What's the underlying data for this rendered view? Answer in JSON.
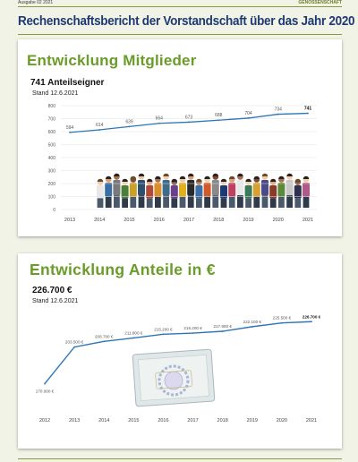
{
  "header": {
    "issue": "Ausgabe 02 2021",
    "brand": "GENOSSENSCHAFT",
    "title": "Rechenschaftsbericht der Vorstandschaft über das Jahr 2020"
  },
  "colors": {
    "line": "#2e75b6",
    "heading": "#6a9c28",
    "title": "#1f3a72"
  },
  "chart_data": [
    {
      "type": "line",
      "title": "Entwicklung Mitglieder",
      "headline_value": "741 Anteilseigner",
      "date_note": "Stand 12.6.2021",
      "x": [
        "2013",
        "2014",
        "2015",
        "2016",
        "2017",
        "2018",
        "2019",
        "2020",
        "2021"
      ],
      "series": [
        {
          "values": [
            594,
            614,
            639,
            664,
            673,
            688,
            704,
            734,
            741
          ],
          "labels": [
            "594",
            "614",
            "639",
            "664",
            "673",
            "688",
            "704",
            "734",
            "741"
          ]
        }
      ],
      "ylim": [
        0,
        800
      ],
      "yticks": [
        "0",
        "100",
        "200",
        "300",
        "400",
        "500",
        "600",
        "700",
        "800"
      ],
      "grid": true,
      "illustration": "people-illustration"
    },
    {
      "type": "line",
      "title": "Entwicklung Anteile in €",
      "headline_value": "226.700 €",
      "date_note": "Stand 12.6.2021",
      "x": [
        "2012",
        "2013",
        "2014",
        "2015",
        "2016",
        "2017",
        "2018",
        "2019",
        "2020",
        "2021"
      ],
      "series": [
        {
          "values": [
            170000,
            203500,
            208700,
            211800,
            215200,
            216200,
            217900,
            222100,
            225500,
            226700
          ],
          "labels": [
            "170.000 €",
            "203.500 €",
            "208.700 €",
            "211.800 €",
            "215.200 €",
            "216.200 €",
            "217.900 €",
            "222.100 €",
            "225.500 €",
            "226.700 €"
          ]
        }
      ],
      "ylim": [
        150000,
        240000
      ],
      "grid": false,
      "illustration": "share-certificate-image"
    }
  ]
}
